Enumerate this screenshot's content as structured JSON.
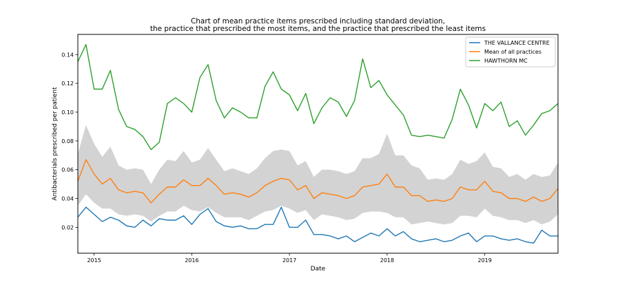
{
  "chart_data": {
    "type": "line",
    "title_lines": [
      "Chart of mean practice items prescribed including standard deviation,",
      "the practice that prescribed the most items, and the practice that prescribed the least items"
    ],
    "xlabel": "Date",
    "ylabel": "Antibacterials prescribed per patient",
    "xlim": [
      "2014-11",
      "2019-10"
    ],
    "ylim": [
      0.002,
      0.154
    ],
    "x_ticks": [
      "2015",
      "2016",
      "2017",
      "2018",
      "2019"
    ],
    "y_ticks": [
      0.02,
      0.04,
      0.06,
      0.08,
      0.1,
      0.12,
      0.14
    ],
    "y_tick_labels": [
      "0.02",
      "0.04",
      "0.06",
      "0.08",
      "0.10",
      "0.12",
      "0.14"
    ],
    "grid": false,
    "legend_position": "top-right",
    "colors": {
      "THE VALLANCE CENTRE": "#1f77b4",
      "Mean of all practices": "#ff7f0e",
      "HAWTHORN MC": "#2ca02c",
      "std_band": "#d3d3d3"
    },
    "months": [
      "2014-11",
      "2014-12",
      "2015-01",
      "2015-02",
      "2015-03",
      "2015-04",
      "2015-05",
      "2015-06",
      "2015-07",
      "2015-08",
      "2015-09",
      "2015-10",
      "2015-11",
      "2015-12",
      "2016-01",
      "2016-02",
      "2016-03",
      "2016-04",
      "2016-05",
      "2016-06",
      "2016-07",
      "2016-08",
      "2016-09",
      "2016-10",
      "2016-11",
      "2016-12",
      "2017-01",
      "2017-02",
      "2017-03",
      "2017-04",
      "2017-05",
      "2017-06",
      "2017-07",
      "2017-08",
      "2017-09",
      "2017-10",
      "2017-11",
      "2017-12",
      "2018-01",
      "2018-02",
      "2018-03",
      "2018-04",
      "2018-05",
      "2018-06",
      "2018-07",
      "2018-08",
      "2018-09",
      "2018-10",
      "2018-11",
      "2018-12",
      "2019-01",
      "2019-02",
      "2019-03",
      "2019-04",
      "2019-05",
      "2019-06",
      "2019-07",
      "2019-08",
      "2019-09",
      "2019-10"
    ],
    "band_upper": [
      0.071,
      0.091,
      0.078,
      0.069,
      0.076,
      0.063,
      0.06,
      0.061,
      0.06,
      0.05,
      0.06,
      0.067,
      0.066,
      0.073,
      0.065,
      0.067,
      0.075,
      0.067,
      0.059,
      0.061,
      0.059,
      0.057,
      0.061,
      0.068,
      0.073,
      0.074,
      0.073,
      0.063,
      0.066,
      0.055,
      0.06,
      0.06,
      0.059,
      0.057,
      0.059,
      0.068,
      0.068,
      0.071,
      0.085,
      0.07,
      0.07,
      0.063,
      0.061,
      0.053,
      0.054,
      0.053,
      0.057,
      0.067,
      0.064,
      0.066,
      0.072,
      0.062,
      0.061,
      0.055,
      0.057,
      0.053,
      0.057,
      0.055,
      0.056,
      0.065
    ],
    "band_lower": [
      0.035,
      0.043,
      0.037,
      0.033,
      0.033,
      0.029,
      0.028,
      0.029,
      0.028,
      0.024,
      0.028,
      0.031,
      0.031,
      0.035,
      0.032,
      0.031,
      0.034,
      0.03,
      0.027,
      0.027,
      0.027,
      0.025,
      0.028,
      0.031,
      0.032,
      0.035,
      0.033,
      0.03,
      0.032,
      0.025,
      0.029,
      0.028,
      0.027,
      0.025,
      0.026,
      0.03,
      0.031,
      0.031,
      0.03,
      0.027,
      0.027,
      0.022,
      0.023,
      0.024,
      0.023,
      0.022,
      0.023,
      0.028,
      0.028,
      0.027,
      0.033,
      0.028,
      0.027,
      0.025,
      0.025,
      0.023,
      0.025,
      0.022,
      0.024,
      0.029
    ],
    "series": [
      {
        "name": "THE VALLANCE CENTRE",
        "values": [
          0.027,
          0.034,
          0.029,
          0.024,
          0.027,
          0.025,
          0.021,
          0.02,
          0.025,
          0.021,
          0.026,
          0.025,
          0.025,
          0.028,
          0.022,
          0.029,
          0.033,
          0.024,
          0.021,
          0.02,
          0.021,
          0.019,
          0.019,
          0.022,
          0.022,
          0.034,
          0.02,
          0.02,
          0.025,
          0.015,
          0.015,
          0.014,
          0.012,
          0.014,
          0.01,
          0.013,
          0.016,
          0.014,
          0.019,
          0.014,
          0.017,
          0.012,
          0.01,
          0.011,
          0.012,
          0.01,
          0.011,
          0.014,
          0.016,
          0.01,
          0.014,
          0.014,
          0.012,
          0.011,
          0.012,
          0.01,
          0.009,
          0.018,
          0.014,
          0.014
        ]
      },
      {
        "name": "Mean of all practices",
        "values": [
          0.052,
          0.067,
          0.057,
          0.05,
          0.054,
          0.046,
          0.044,
          0.045,
          0.044,
          0.037,
          0.043,
          0.048,
          0.048,
          0.053,
          0.049,
          0.049,
          0.054,
          0.049,
          0.043,
          0.044,
          0.043,
          0.041,
          0.044,
          0.049,
          0.052,
          0.054,
          0.053,
          0.046,
          0.049,
          0.04,
          0.044,
          0.043,
          0.042,
          0.04,
          0.042,
          0.048,
          0.049,
          0.05,
          0.057,
          0.048,
          0.048,
          0.042,
          0.042,
          0.038,
          0.039,
          0.038,
          0.04,
          0.048,
          0.046,
          0.046,
          0.052,
          0.045,
          0.044,
          0.04,
          0.04,
          0.038,
          0.041,
          0.038,
          0.04,
          0.047
        ]
      },
      {
        "name": "HAWTHORN MC",
        "values": [
          0.135,
          0.147,
          0.116,
          0.116,
          0.129,
          0.102,
          0.09,
          0.088,
          0.083,
          0.074,
          0.079,
          0.106,
          0.11,
          0.106,
          0.1,
          0.124,
          0.133,
          0.108,
          0.096,
          0.103,
          0.1,
          0.096,
          0.096,
          0.118,
          0.128,
          0.116,
          0.112,
          0.101,
          0.113,
          0.092,
          0.103,
          0.11,
          0.107,
          0.097,
          0.108,
          0.137,
          0.117,
          0.122,
          0.112,
          0.105,
          0.098,
          0.084,
          0.083,
          0.084,
          0.083,
          0.082,
          0.095,
          0.116,
          0.105,
          0.089,
          0.106,
          0.101,
          0.107,
          0.09,
          0.094,
          0.084,
          0.091,
          0.099,
          0.101,
          0.106
        ]
      }
    ]
  }
}
